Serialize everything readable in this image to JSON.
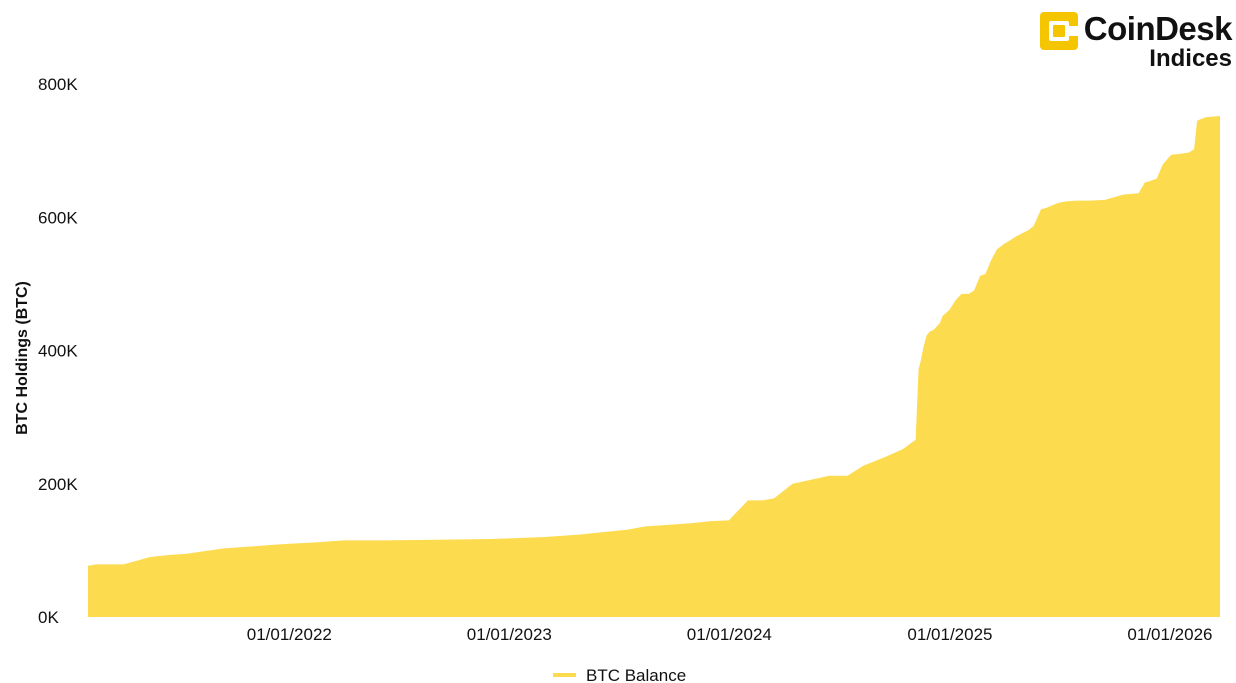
{
  "logo": {
    "brand": "CoinDesk",
    "sub": "Indices",
    "accent": "#F5C500"
  },
  "chart_data": {
    "type": "area",
    "title": "",
    "xlabel": "",
    "ylabel": "BTC Holdings (BTC)",
    "ylim": [
      0,
      800000
    ],
    "xlim": [
      "2021-02-01",
      "2026-03-25"
    ],
    "yticks": [
      0,
      200000,
      400000,
      600000,
      800000
    ],
    "ytick_labels": [
      "0K",
      "200K",
      "400K",
      "600K",
      "800K"
    ],
    "xticks": [
      "2022-01-01",
      "2023-01-01",
      "2024-01-01",
      "2025-01-01",
      "2026-01-01"
    ],
    "xtick_labels": [
      "01/01/2022",
      "01/01/2023",
      "01/01/2024",
      "01/01/2025",
      "01/01/2026"
    ],
    "grid": false,
    "legend": "bottom-center",
    "series": [
      {
        "name": "BTC Balance",
        "color": "#FDDB4F",
        "x": [
          "2021-02-01",
          "2021-02-15",
          "2021-04-01",
          "2021-05-15",
          "2021-06-15",
          "2021-07-15",
          "2021-08-15",
          "2021-09-15",
          "2021-11-01",
          "2021-12-01",
          "2022-01-01",
          "2022-02-15",
          "2022-04-01",
          "2022-06-01",
          "2022-09-01",
          "2022-12-01",
          "2023-01-01",
          "2023-03-01",
          "2023-05-01",
          "2023-06-01",
          "2023-07-15",
          "2023-08-15",
          "2023-09-15",
          "2023-11-01",
          "2023-12-01",
          "2023-12-31",
          "2024-02-01",
          "2024-02-25",
          "2024-03-15",
          "2024-04-15",
          "2024-06-15",
          "2024-07-15",
          "2024-08-10",
          "2024-09-15",
          "2024-10-15",
          "2024-11-05",
          "2024-11-10",
          "2024-11-14",
          "2024-11-18",
          "2024-11-23",
          "2024-11-28",
          "2024-12-05",
          "2024-12-15",
          "2024-12-20",
          "2024-12-31",
          "2025-01-10",
          "2025-01-20",
          "2025-02-01",
          "2025-02-10",
          "2025-02-20",
          "2025-03-01",
          "2025-03-10",
          "2025-03-20",
          "2025-04-01",
          "2025-04-10",
          "2025-04-20",
          "2025-05-01",
          "2025-05-12",
          "2025-05-20",
          "2025-06-01",
          "2025-06-10",
          "2025-06-20",
          "2025-07-01",
          "2025-07-15",
          "2025-08-01",
          "2025-08-20",
          "2025-09-15",
          "2025-10-15",
          "2025-11-10",
          "2025-11-20",
          "2025-12-01",
          "2025-12-10",
          "2025-12-20",
          "2026-01-01",
          "2026-01-05",
          "2026-01-15",
          "2026-02-01",
          "2026-02-10",
          "2026-02-15",
          "2026-03-01",
          "2026-03-25"
        ],
        "values": [
          77000,
          79000,
          79000,
          90000,
          93000,
          95000,
          99000,
          103000,
          106000,
          108000,
          110000,
          112000,
          115000,
          115000,
          116000,
          117000,
          118000,
          120000,
          124000,
          127000,
          131000,
          136000,
          138000,
          141000,
          144000,
          145000,
          175000,
          175000,
          178000,
          200000,
          212000,
          212000,
          227000,
          240000,
          252000,
          266000,
          372000,
          386000,
          405000,
          422000,
          428000,
          431000,
          441000,
          452000,
          461000,
          475000,
          485000,
          485000,
          490000,
          512000,
          515000,
          535000,
          552000,
          560000,
          565000,
          571000,
          576000,
          581000,
          587000,
          612000,
          614000,
          618000,
          622000,
          624000,
          625000,
          625000,
          626000,
          634000,
          636000,
          652000,
          655000,
          658000,
          679000,
          692000,
          694000,
          695000,
          697000,
          702000,
          745000,
          750000,
          752000
        ]
      }
    ]
  }
}
